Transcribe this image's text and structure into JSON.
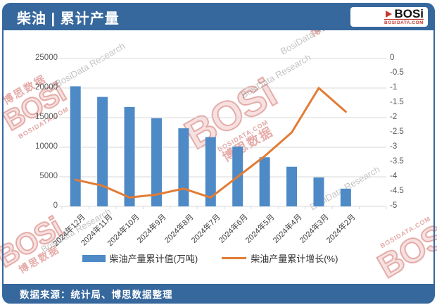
{
  "header": {
    "title": "柴油 | 累计产量",
    "logo_text": "BOSi",
    "logo_sub": "BOSIDATA.COM"
  },
  "footer": {
    "source": "数据来源：统计局、博思数据整理"
  },
  "watermarks": {
    "logo_text": "BOSi",
    "brand_cn": "博思数据",
    "logo_sub": "BOSIDATA.COM",
    "research": "BosiData Research"
  },
  "colors": {
    "frame": "#36689D",
    "bar": "#4E8AC6",
    "line": "#E27C35",
    "grid": "#D9D9D9",
    "axis_text": "#595959"
  },
  "chart_data": {
    "type": "bar",
    "subtype": "bar-line-combo",
    "title": "柴油 | 累计产量",
    "categories": [
      "2024年12月",
      "2024年11月",
      "2024年10月",
      "2024年9月",
      "2024年8月",
      "2024年7月",
      "2024年6月",
      "2024年5月",
      "2024年4月",
      "2024年3月",
      "2024年2月"
    ],
    "series": [
      {
        "name": "柴油产量累计值(万吨)",
        "type": "bar",
        "axis": "left",
        "color": "#4E8AC6",
        "values": [
          20300,
          18500,
          16800,
          14900,
          13200,
          11700,
          10100,
          8300,
          6700,
          4900,
          3000
        ]
      },
      {
        "name": "柴油产量累计增长(%)",
        "type": "line",
        "axis": "right",
        "color": "#E27C35",
        "values": [
          -4.1,
          -4.3,
          -4.7,
          -4.6,
          -4.4,
          -4.7,
          -4.0,
          -3.3,
          -2.5,
          -1.0,
          -1.8
        ]
      }
    ],
    "left_axis": {
      "min": 0,
      "max": 25000,
      "step": 5000
    },
    "right_axis": {
      "min": -5,
      "max": 0,
      "step": 0.5
    },
    "grid": true,
    "legend_position": "bottom",
    "x_slots": 12
  }
}
